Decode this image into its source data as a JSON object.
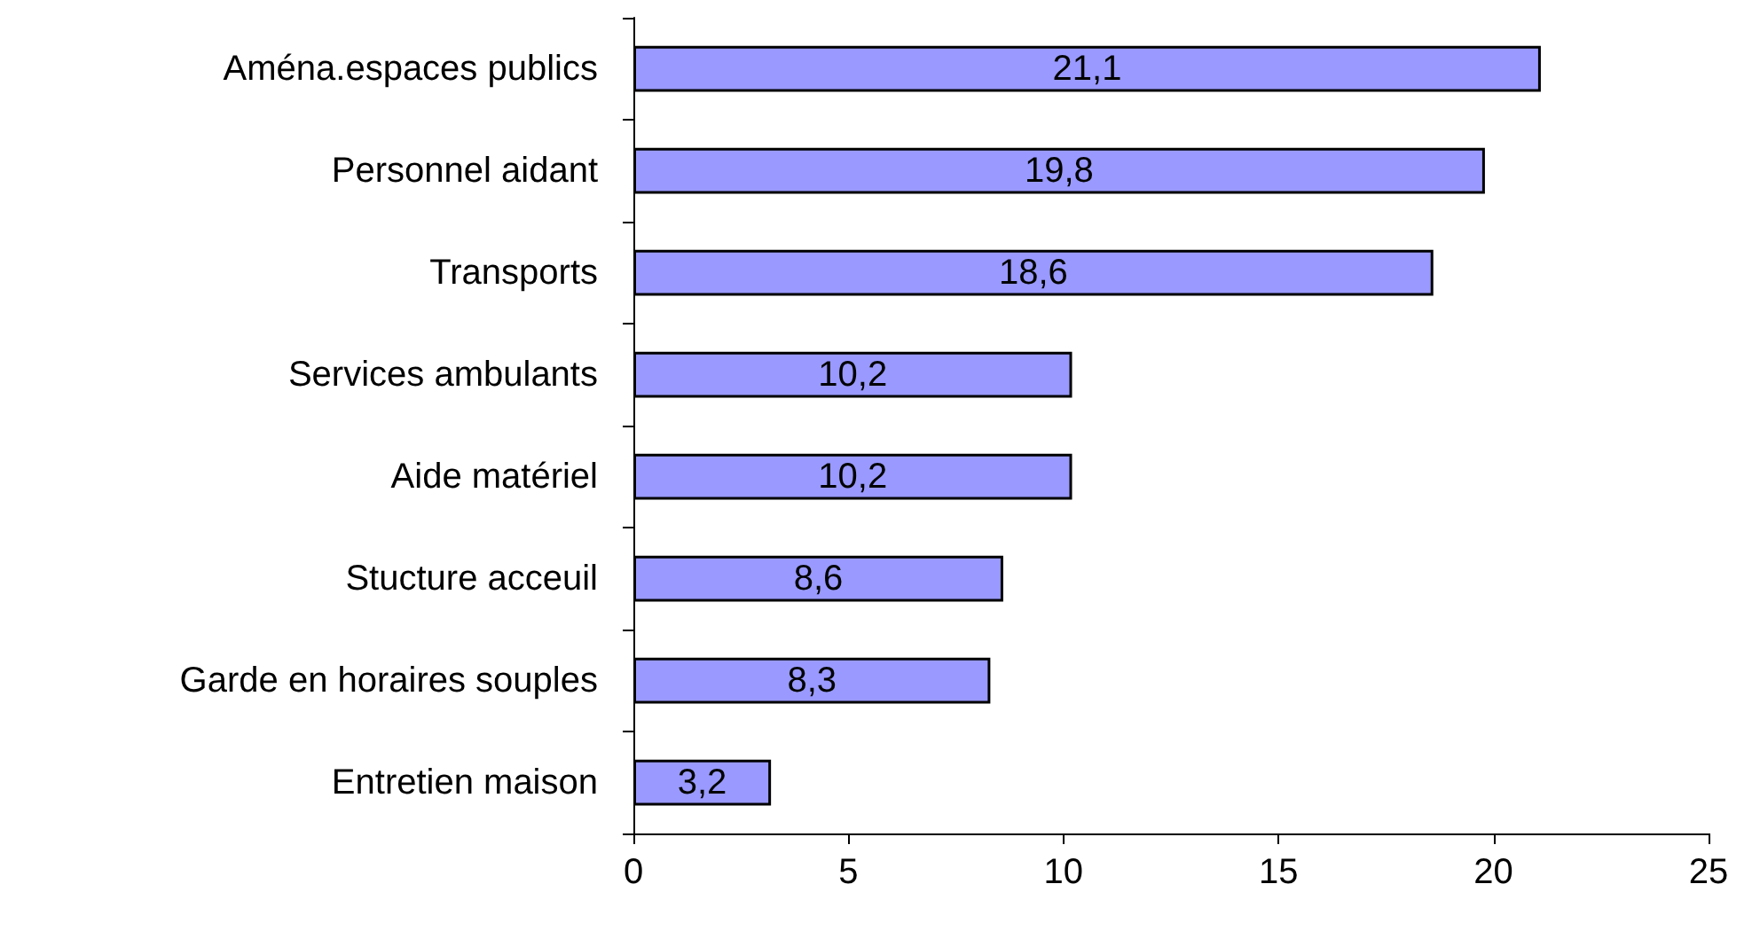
{
  "chart_data": {
    "type": "bar",
    "orientation": "horizontal",
    "categories": [
      "Aména.espaces publics",
      "Personnel aidant",
      "Transports",
      "Services ambulants",
      "Aide matériel",
      "Stucture acceuil",
      "Garde en horaires souples",
      "Entretien maison"
    ],
    "values": [
      21.1,
      19.8,
      18.6,
      10.2,
      10.2,
      8.6,
      8.3,
      3.2
    ],
    "value_labels": [
      "21,1",
      "19,8",
      "18,6",
      "10,2",
      "10,2",
      "8,6",
      "8,3",
      "3,2"
    ],
    "color": "#9999ff",
    "xlim": [
      0,
      25
    ],
    "xticks": [
      0,
      5,
      10,
      15,
      20,
      25
    ],
    "grid": false
  }
}
